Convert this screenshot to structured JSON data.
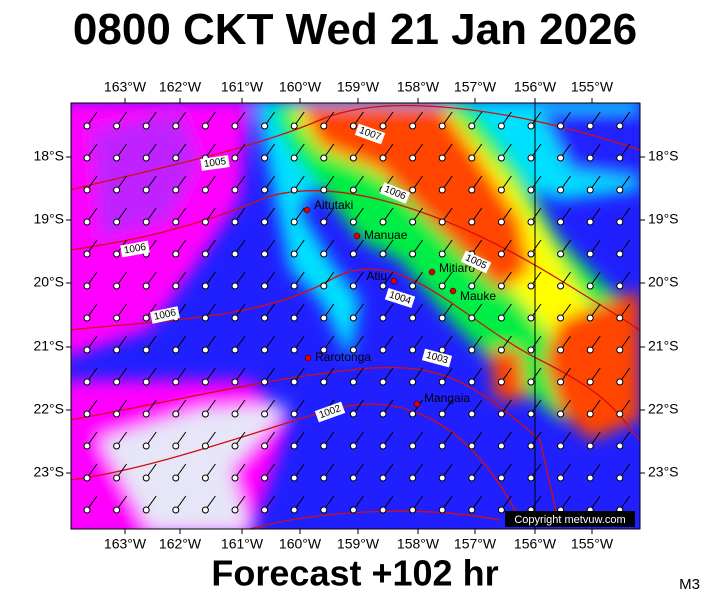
{
  "header": {
    "title": "0800 CKT Wed 21 Jan 2026"
  },
  "footer": {
    "forecast": "Forecast +102 hr",
    "model": "M3",
    "copyright": "Copyright metvuw.com"
  },
  "map": {
    "lon_labels": [
      "163°W",
      "162°W",
      "161°W",
      "160°W",
      "159°W",
      "158°W",
      "157°W",
      "156°W",
      "155°W"
    ],
    "lat_labels": [
      "18°S",
      "19°S",
      "20°S",
      "21°S",
      "22°S",
      "23°S"
    ],
    "places": [
      {
        "name": "Aitutaki"
      },
      {
        "name": "Manuae"
      },
      {
        "name": "Atiu"
      },
      {
        "name": "Mitiaro"
      },
      {
        "name": "Mauke"
      },
      {
        "name": "Rarotonga"
      },
      {
        "name": "Mangaia"
      }
    ],
    "isobar_labels": [
      "1007",
      "1005",
      "1006",
      "1006",
      "1006",
      "1005",
      "1004",
      "1003",
      "1002"
    ]
  }
}
